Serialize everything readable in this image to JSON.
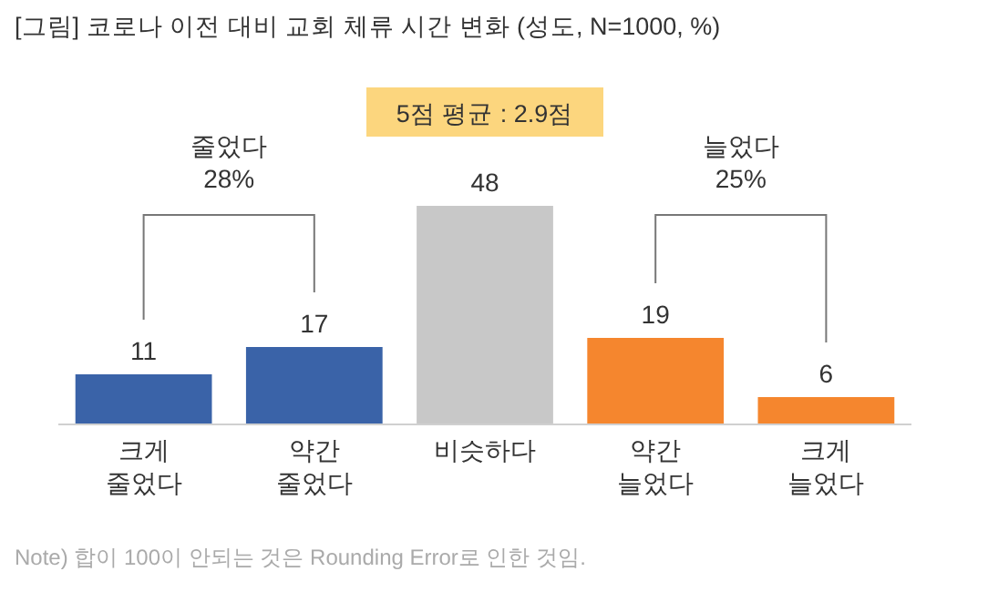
{
  "chart_data": {
    "type": "bar",
    "title": "[그림] 코로나 이전 대비 교회 체류 시간 변화 (성도, N=1000, %)",
    "categories": [
      "크게 줄었다",
      "약간 줄었다",
      "비슷하다",
      "약간 늘었다",
      "크게 늘었다"
    ],
    "values": [
      11,
      17,
      48,
      19,
      6
    ],
    "colors": [
      "#3a63a8",
      "#3a63a8",
      "#c8c8c8",
      "#f5862e",
      "#f5862e"
    ],
    "data_labels": true,
    "annotations": [
      "5점 평균 : 2.9점",
      "줄었다 28%",
      "늘었다 25%",
      "Note) 합이 100이 안되는 것은 Rounding Error로 인한 것임."
    ]
  }
}
